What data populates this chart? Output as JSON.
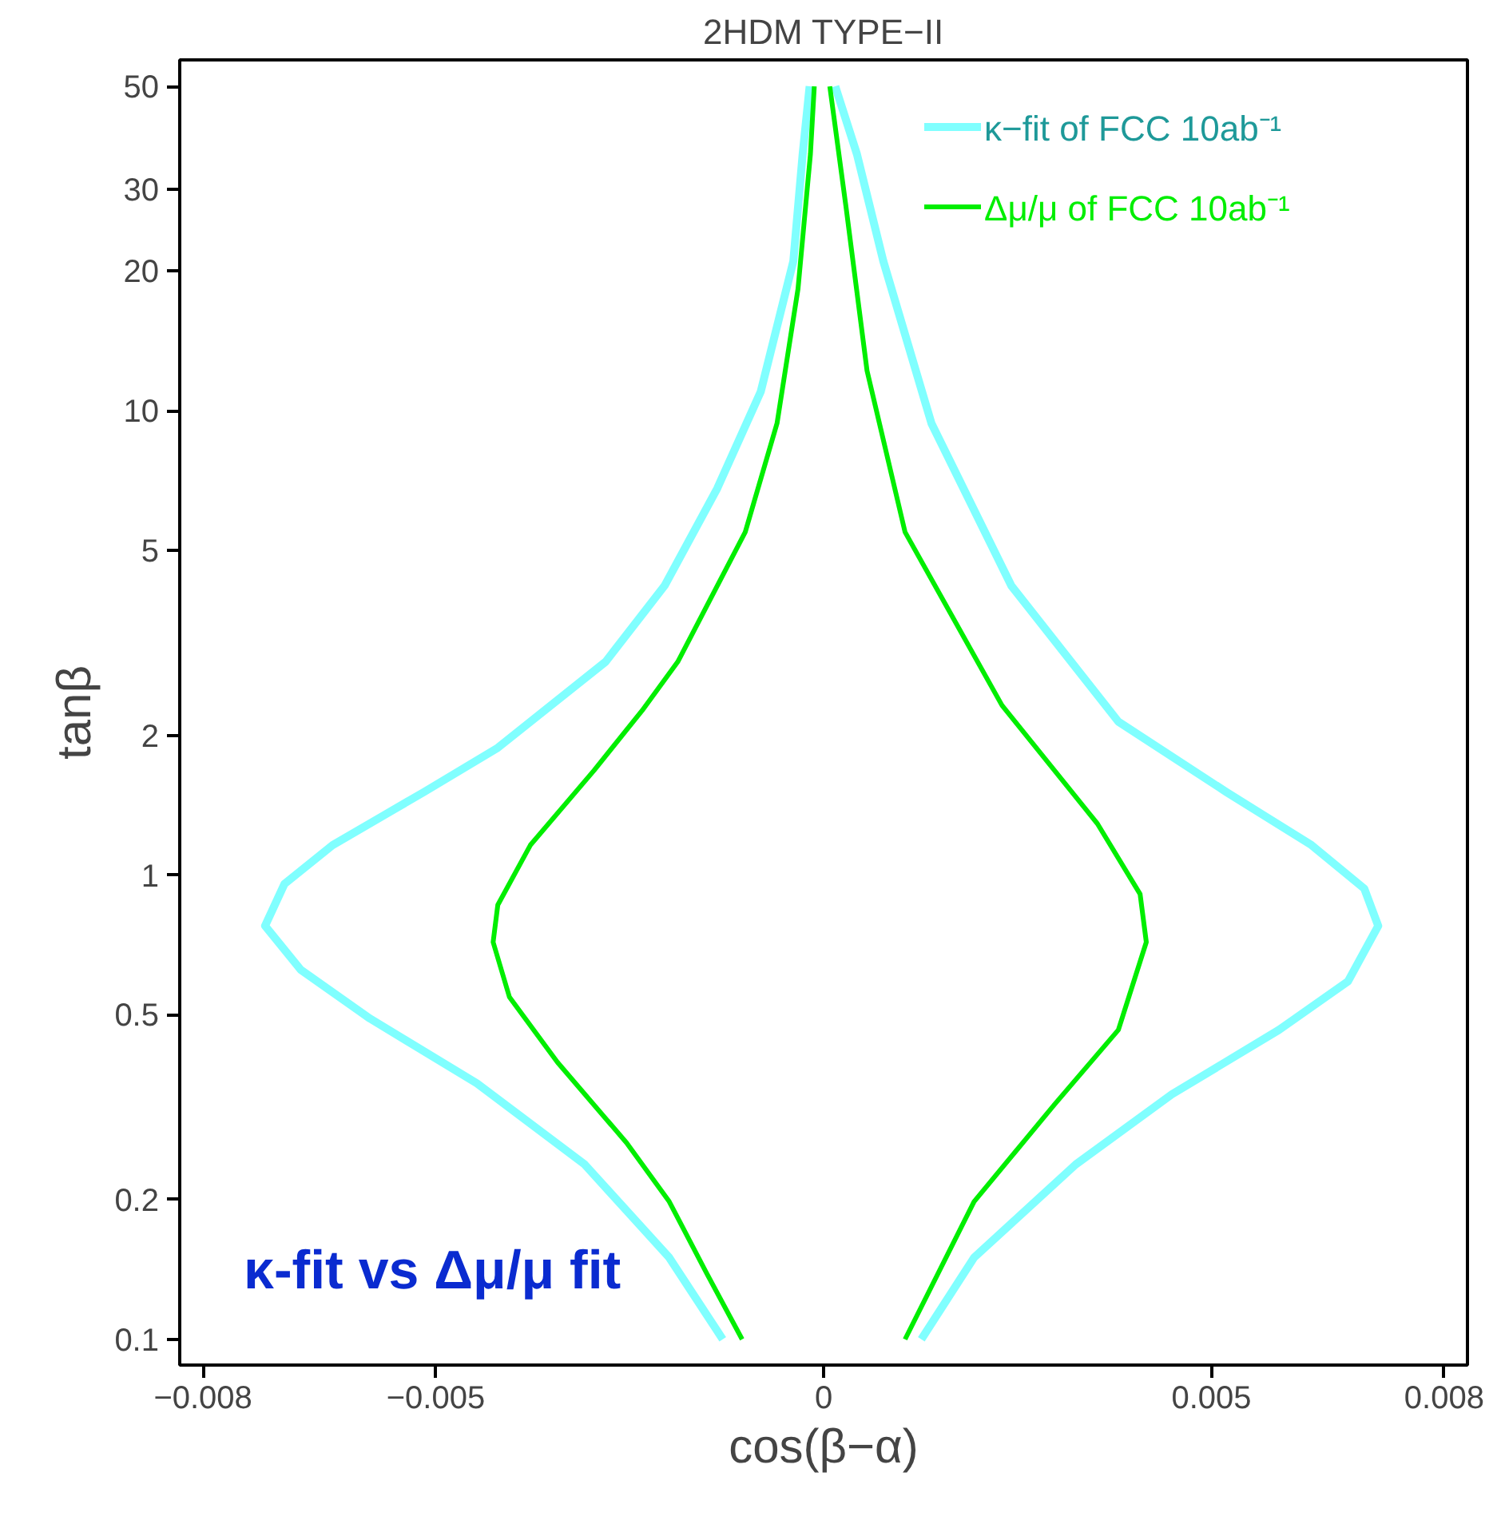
{
  "chart_data": {
    "type": "line",
    "title": "2HDM TYPE−II",
    "xlabel": "cos(β−α)",
    "ylabel": "tanβ",
    "log": "y",
    "xlim": [
      -0.0083,
      0.0083
    ],
    "ylim": [
      0.088,
      57
    ],
    "xticks": [
      {
        "value": -0.008,
        "label": "−0.008"
      },
      {
        "value": -0.005,
        "label": "−0.005"
      },
      0,
      0.005,
      0.008
    ],
    "yticks": [
      0.1,
      0.2,
      0.5,
      1,
      2,
      5,
      10,
      20,
      30,
      50
    ],
    "grid": false,
    "legend": "top right",
    "marker": "none",
    "line_style": "solid",
    "annotations": [
      "κ-fit vs Δμ/μ  fit"
    ],
    "series": [
      {
        "name": "κ−fit of FCC 10ab⁻¹",
        "color": "#80ffff",
        "x": [
          -0.0013,
          -0.00199,
          -0.00308,
          -0.00447,
          -0.00585,
          -0.00674,
          -0.0072,
          -0.00695,
          -0.00633,
          -0.00515,
          -0.0042,
          -0.00281,
          -0.00205,
          -0.00137,
          -0.00081,
          -0.00039,
          -0.00027,
          -0.00018,
          0,
          0.00015,
          0.00043,
          0.00077,
          0.00139,
          0.00242,
          0.0038,
          0.00519,
          0.00629,
          0.00697,
          0.00715,
          0.00676,
          0.00587,
          0.00449,
          0.00325,
          0.00194,
          0.00126
        ],
        "values": [
          0.1,
          0.15,
          0.238,
          0.356,
          0.491,
          0.625,
          0.777,
          0.957,
          1.16,
          1.51,
          1.88,
          2.88,
          4.2,
          6.81,
          11.0,
          21,
          35.7,
          50,
          null,
          50,
          35.7,
          21,
          9.4,
          4.2,
          2.14,
          1.51,
          1.16,
          0.935,
          0.777,
          0.59,
          0.464,
          0.337,
          0.238,
          0.15,
          0.1
        ]
      },
      {
        "name": "Δμ/μ of FCC 10ab⁻¹",
        "color": "#00ee00",
        "x": [
          -0.00105,
          -0.00151,
          -0.00199,
          -0.00254,
          -0.00343,
          -0.00405,
          -0.00426,
          -0.0042,
          -0.00378,
          -0.00296,
          -0.00234,
          -0.00188,
          -0.00101,
          -0.0006,
          -0.00033,
          -0.00017,
          -0.00012,
          0,
          8e-05,
          0.00029,
          0.00056,
          0.00105,
          0.0023,
          0.00353,
          0.00408,
          0.00416,
          0.0038,
          0.00298,
          0.00194,
          0.00105
        ],
        "values": [
          0.1,
          0.139,
          0.198,
          0.265,
          0.395,
          0.546,
          0.717,
          0.862,
          1.16,
          1.68,
          2.26,
          2.88,
          5.48,
          9.4,
          18.3,
          35.7,
          50,
          null,
          50,
          27.4,
          12.2,
          5.48,
          2.32,
          1.29,
          0.91,
          0.717,
          0.464,
          0.321,
          0.198,
          0.1
        ]
      }
    ]
  }
}
